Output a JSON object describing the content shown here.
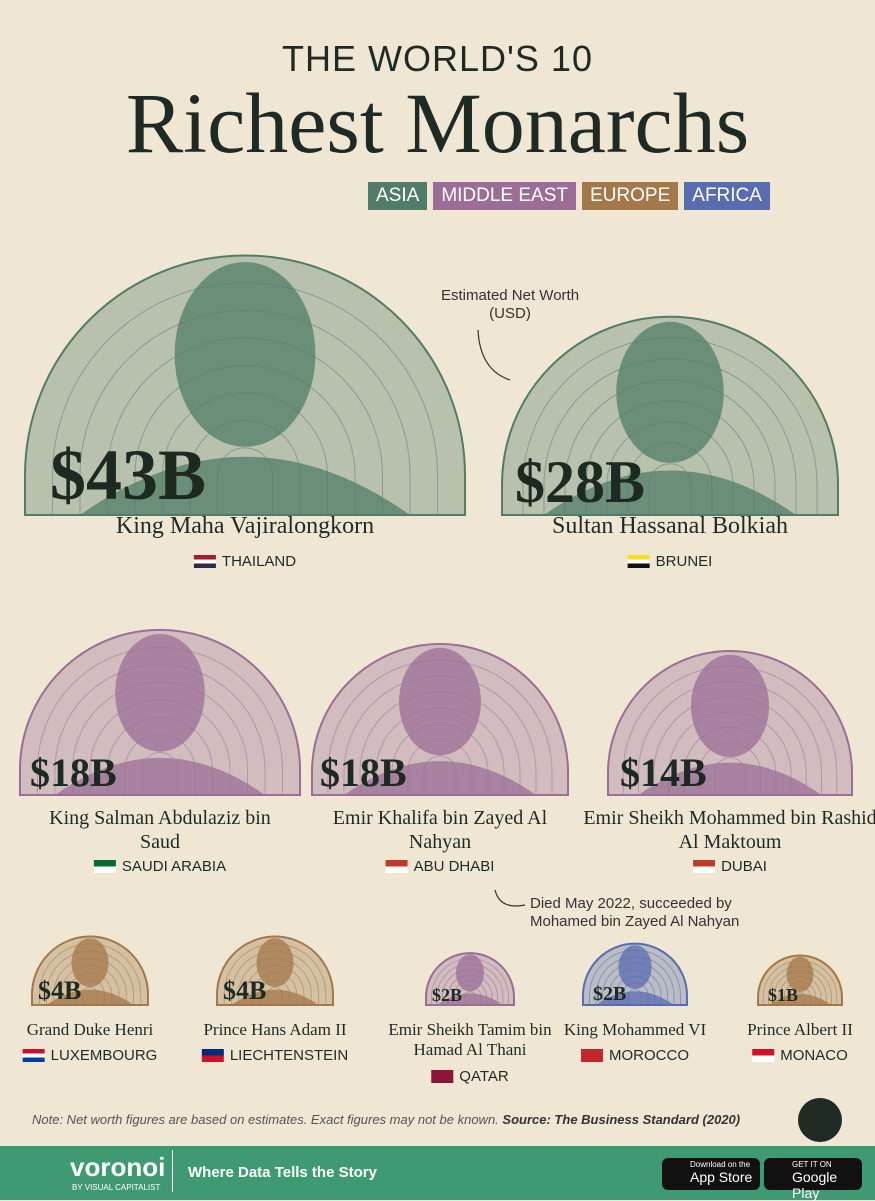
{
  "header": {
    "title_top": "THE WORLD'S 10",
    "title_main": "Richest Monarchs"
  },
  "legend": [
    "ASIA",
    "MIDDLE EAST",
    "EUROPE",
    "AFRICA"
  ],
  "annotations": {
    "net_worth": "Estimated Net Worth (USD)",
    "died": "Died May 2022, succeeded by Mohamed bin Zayed Al Nahyan"
  },
  "monarchs": [
    {
      "worth": "$43B",
      "name": "King Maha Vajiralongkorn",
      "country": "THAILAND"
    },
    {
      "worth": "$28B",
      "name": "Sultan Hassanal Bolkiah",
      "country": "BRUNEI"
    },
    {
      "worth": "$18B",
      "name": "King Salman Abdulaziz bin Saud",
      "country": "SAUDI ARABIA"
    },
    {
      "worth": "$18B",
      "name": "Emir Khalifa bin Zayed Al Nahyan",
      "country": "ABU DHABI"
    },
    {
      "worth": "$14B",
      "name": "Emir Sheikh Mohammed bin Rashid Al Maktoum",
      "country": "DUBAI"
    },
    {
      "worth": "$4B",
      "name": "Grand Duke Henri",
      "country": "LUXEMBOURG"
    },
    {
      "worth": "$4B",
      "name": "Prince Hans Adam II",
      "country": "LIECHTENSTEIN"
    },
    {
      "worth": "$2B",
      "name": "Emir Sheikh Tamim bin Hamad Al Thani",
      "country": "QATAR"
    },
    {
      "worth": "$2B",
      "name": "King Mohammed VI",
      "country": "MOROCCO"
    },
    {
      "worth": "$1B",
      "name": "Prince Albert II",
      "country": "MONACO"
    }
  ],
  "note": "Note: Net worth figures are based on estimates. Exact figures may not be known.",
  "source": "Source: The Business Standard (2020)",
  "footer": {
    "brand": "voronoi",
    "by": "BY VISUAL CAPITALIST",
    "tagline": "Where Data Tells the Story",
    "app_store": {
      "small": "Download on the",
      "big": "App Store"
    },
    "google_play": {
      "small": "GET IT ON",
      "big": "Google Play"
    }
  }
}
